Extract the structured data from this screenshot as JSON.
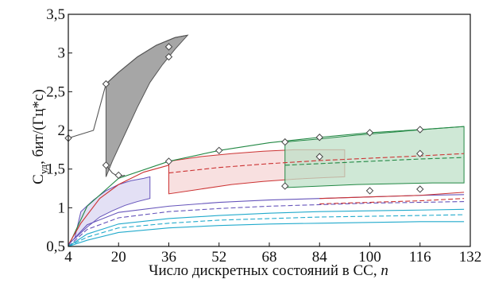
{
  "chart_data": {
    "type": "line",
    "xlabel": "Число дискретных состояний в СС, n",
    "xlabel_main": "Число дискретных состояний в СС,",
    "xlabel_var": "n",
    "ylabel": "Cуд, бит/(Гц*с)",
    "ylabel_main": "C",
    "ylabel_sub": "уд",
    "ylabel_rest": ", бит/(Гц*с)",
    "xlim": [
      4,
      132
    ],
    "ylim": [
      0.5,
      3.5
    ],
    "x_ticks": [
      4,
      20,
      36,
      52,
      68,
      84,
      100,
      116,
      132
    ],
    "x_tick_labels": [
      "4",
      "20",
      "36",
      "52",
      "68",
      "84",
      "100",
      "116",
      "132"
    ],
    "y_ticks": [
      0.5,
      1,
      1.5,
      2,
      2.5,
      3,
      3.5
    ],
    "y_tick_labels": [
      "0,5",
      "1",
      "1,5",
      "2",
      "2,5",
      "3",
      "3,5"
    ],
    "grid": false,
    "legend": "none",
    "bands": [
      {
        "color": "#555555",
        "fill": "#888888",
        "upper": [
          [
            16,
            2.6
          ],
          [
            20,
            2.75
          ],
          [
            26,
            2.95
          ],
          [
            32,
            3.1
          ],
          [
            38,
            3.2
          ],
          [
            42,
            3.23
          ]
        ],
        "lower": [
          [
            16,
            1.4
          ],
          [
            18,
            1.6
          ],
          [
            22,
            1.95
          ],
          [
            26,
            2.3
          ],
          [
            30,
            2.62
          ],
          [
            34,
            2.85
          ],
          [
            38,
            3.05
          ],
          [
            42,
            3.23
          ]
        ]
      },
      {
        "color": "#cc3333",
        "fill": "#f6d6d6",
        "upper": [
          [
            36,
            1.6
          ],
          [
            46,
            1.66
          ],
          [
            56,
            1.7
          ],
          [
            66,
            1.73
          ],
          [
            76,
            1.75
          ],
          [
            86,
            1.75
          ],
          [
            92,
            1.75
          ]
        ],
        "lower": [
          [
            36,
            1.18
          ],
          [
            46,
            1.24
          ],
          [
            56,
            1.3
          ],
          [
            66,
            1.34
          ],
          [
            76,
            1.37
          ],
          [
            86,
            1.39
          ],
          [
            92,
            1.4
          ]
        ]
      },
      {
        "color": "#228844",
        "fill": "#bfe0c8",
        "upper": [
          [
            73,
            1.85
          ],
          [
            84,
            1.89
          ],
          [
            96,
            1.94
          ],
          [
            108,
            1.98
          ],
          [
            120,
            2.02
          ],
          [
            130,
            2.05
          ]
        ],
        "lower": [
          [
            73,
            1.26
          ],
          [
            84,
            1.28
          ],
          [
            96,
            1.3
          ],
          [
            108,
            1.31
          ],
          [
            120,
            1.32
          ],
          [
            130,
            1.32
          ]
        ]
      },
      {
        "color": "#6655bb",
        "fill": "#d9d6f2",
        "upper": [
          [
            8,
            0.95
          ],
          [
            12,
            1.1
          ],
          [
            16,
            1.22
          ],
          [
            20,
            1.3
          ],
          [
            24,
            1.35
          ],
          [
            28,
            1.38
          ],
          [
            30,
            1.4
          ]
        ],
        "lower": [
          [
            6,
            0.6
          ],
          [
            10,
            0.75
          ],
          [
            14,
            0.88
          ],
          [
            18,
            0.96
          ],
          [
            22,
            1.03
          ],
          [
            26,
            1.08
          ],
          [
            30,
            1.12
          ]
        ]
      }
    ],
    "series": [
      {
        "color": "#555555",
        "dash": false,
        "x": [
          4,
          8,
          12,
          16,
          20,
          26,
          32,
          38,
          42
        ],
        "y": [
          1.9,
          1.95,
          2.0,
          2.6,
          2.75,
          2.95,
          3.1,
          3.2,
          3.23
        ]
      },
      {
        "color": "#555555",
        "dash": false,
        "x": [
          16,
          18,
          20,
          22
        ],
        "y": [
          1.55,
          1.45,
          1.4,
          1.42
        ]
      },
      {
        "color": "#228844",
        "dash": false,
        "x": [
          4,
          10,
          20,
          36,
          52,
          68,
          84,
          100,
          116,
          130
        ],
        "y": [
          0.5,
          1.02,
          1.38,
          1.6,
          1.74,
          1.84,
          1.91,
          1.97,
          2.01,
          2.05
        ]
      },
      {
        "color": "#cc3333",
        "dash": false,
        "x": [
          4,
          8,
          14,
          20,
          28,
          36
        ],
        "y": [
          0.52,
          0.8,
          1.12,
          1.3,
          1.46,
          1.55
        ]
      },
      {
        "color": "#cc3333",
        "dash": true,
        "x": [
          36,
          52,
          68,
          84,
          100,
          116,
          130
        ],
        "y": [
          1.45,
          1.52,
          1.57,
          1.61,
          1.64,
          1.67,
          1.7
        ]
      },
      {
        "color": "#228844",
        "dash": true,
        "x": [
          73,
          84,
          100,
          116,
          130
        ],
        "y": [
          1.55,
          1.57,
          1.6,
          1.63,
          1.65
        ]
      },
      {
        "color": "#6655bb",
        "dash": false,
        "x": [
          4,
          10,
          20,
          36,
          52,
          68,
          84,
          100,
          116,
          130
        ],
        "y": [
          0.52,
          0.78,
          0.94,
          1.02,
          1.07,
          1.1,
          1.12,
          1.14,
          1.16,
          1.17
        ]
      },
      {
        "color": "#6655bb",
        "dash": true,
        "x": [
          4,
          10,
          20,
          36,
          52,
          68,
          84,
          100,
          116,
          130
        ],
        "y": [
          0.5,
          0.72,
          0.87,
          0.95,
          0.99,
          1.02,
          1.04,
          1.06,
          1.07,
          1.08
        ]
      },
      {
        "color": "#22aacc",
        "dash": false,
        "x": [
          4,
          10,
          20,
          36,
          52,
          68,
          84,
          100,
          116,
          130
        ],
        "y": [
          0.5,
          0.66,
          0.79,
          0.86,
          0.9,
          0.93,
          0.95,
          0.96,
          0.97,
          0.98
        ]
      },
      {
        "color": "#22aacc",
        "dash": true,
        "x": [
          4,
          10,
          20,
          36,
          52,
          68,
          84,
          100,
          116,
          130
        ],
        "y": [
          0.5,
          0.62,
          0.74,
          0.8,
          0.84,
          0.86,
          0.88,
          0.89,
          0.9,
          0.91
        ]
      },
      {
        "color": "#22aacc",
        "dash": false,
        "x": [
          4,
          10,
          20,
          36,
          52,
          68,
          84,
          100,
          116,
          130
        ],
        "y": [
          0.5,
          0.58,
          0.68,
          0.74,
          0.77,
          0.79,
          0.8,
          0.81,
          0.82,
          0.82
        ]
      },
      {
        "color": "#cc3333",
        "dash": false,
        "x": [
          84,
          100,
          116,
          130
        ],
        "y": [
          1.12,
          1.14,
          1.16,
          1.2
        ]
      },
      {
        "color": "#cc3333",
        "dash": true,
        "x": [
          84,
          100,
          116,
          130
        ],
        "y": [
          1.05,
          1.07,
          1.09,
          1.12
        ]
      }
    ],
    "markers": [
      {
        "x": 4,
        "y": 1.9
      },
      {
        "x": 16,
        "y": 2.6
      },
      {
        "x": 16,
        "y": 1.55
      },
      {
        "x": 20,
        "y": 1.42
      },
      {
        "x": 36,
        "y": 1.6
      },
      {
        "x": 36,
        "y": 2.95
      },
      {
        "x": 36,
        "y": 3.08
      },
      {
        "x": 52,
        "y": 1.74
      },
      {
        "x": 73,
        "y": 1.85
      },
      {
        "x": 73,
        "y": 1.28
      },
      {
        "x": 84,
        "y": 1.91
      },
      {
        "x": 84,
        "y": 1.66
      },
      {
        "x": 100,
        "y": 1.97
      },
      {
        "x": 116,
        "y": 2.01
      },
      {
        "x": 116,
        "y": 1.7
      },
      {
        "x": 100,
        "y": 1.22
      },
      {
        "x": 116,
        "y": 1.24
      }
    ]
  }
}
